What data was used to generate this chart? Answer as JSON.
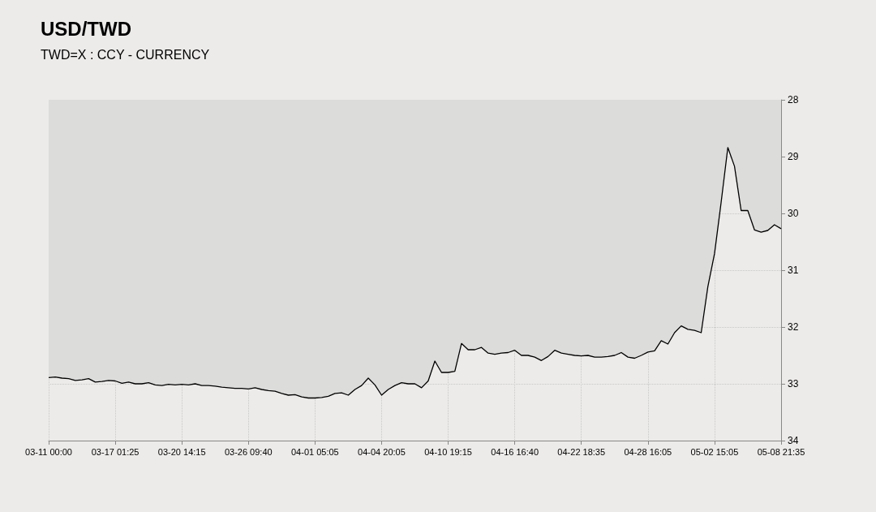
{
  "chart_data": {
    "type": "area",
    "title": "USD/TWD",
    "subtitle": "TWD=X : CCY - CURRENCY",
    "categories": [
      "03-11 00:00",
      null,
      null,
      null,
      null,
      null,
      null,
      null,
      null,
      null,
      "03-17 01:25",
      null,
      null,
      null,
      null,
      null,
      null,
      null,
      null,
      null,
      "03-20 14:15",
      null,
      null,
      null,
      null,
      null,
      null,
      null,
      null,
      null,
      "03-26 09:40",
      null,
      null,
      null,
      null,
      null,
      null,
      null,
      null,
      null,
      "04-01 05:05",
      null,
      null,
      null,
      null,
      null,
      null,
      null,
      null,
      null,
      "04-04 20:05",
      null,
      null,
      null,
      null,
      null,
      null,
      null,
      null,
      null,
      "04-10 19:15",
      null,
      null,
      null,
      null,
      null,
      null,
      null,
      null,
      null,
      "04-16 16:40",
      null,
      null,
      null,
      null,
      null,
      null,
      null,
      null,
      null,
      "04-22 18:35",
      null,
      null,
      null,
      null,
      null,
      null,
      null,
      null,
      null,
      "04-28 16:05",
      null,
      null,
      null,
      null,
      null,
      null,
      null,
      null,
      null,
      "05-02 15:05",
      null,
      null,
      null,
      null,
      null,
      null,
      null,
      null,
      null,
      "05-08 21:35"
    ],
    "series": [
      {
        "color": "#000000",
        "values": [
          32.89,
          32.88,
          32.9,
          32.91,
          32.94,
          32.93,
          32.91,
          32.97,
          32.96,
          32.94,
          32.95,
          32.99,
          32.97,
          33.0,
          33.0,
          32.98,
          33.02,
          33.03,
          33.01,
          33.02,
          33.01,
          33.02,
          33.0,
          33.03,
          33.03,
          33.04,
          33.06,
          33.07,
          33.08,
          33.08,
          33.09,
          33.07,
          33.1,
          33.12,
          33.13,
          33.17,
          33.2,
          33.19,
          33.23,
          33.25,
          33.25,
          33.24,
          33.22,
          33.17,
          33.16,
          33.2,
          33.1,
          33.03,
          32.9,
          33.02,
          33.2,
          33.1,
          33.03,
          32.98,
          33.0,
          33.0,
          33.07,
          32.95,
          32.6,
          32.8,
          32.8,
          32.78,
          32.29,
          32.4,
          32.4,
          32.36,
          32.46,
          32.48,
          32.46,
          32.45,
          32.41,
          32.5,
          32.5,
          32.53,
          32.59,
          32.52,
          32.41,
          32.46,
          32.48,
          32.5,
          32.51,
          32.5,
          32.53,
          32.53,
          32.52,
          32.5,
          32.45,
          32.53,
          32.55,
          32.5,
          32.44,
          32.42,
          32.24,
          32.3,
          32.1,
          31.98,
          32.04,
          32.06,
          32.1,
          31.29,
          30.71,
          29.8,
          28.84,
          29.17,
          29.95,
          29.95,
          30.29,
          30.33,
          30.3,
          30.2,
          30.27
        ]
      }
    ],
    "ylim": [
      34,
      28
    ],
    "yticks": [
      28,
      29,
      30,
      31,
      32,
      33,
      34
    ],
    "grid": true,
    "marker": "none",
    "line_style": "solid"
  }
}
